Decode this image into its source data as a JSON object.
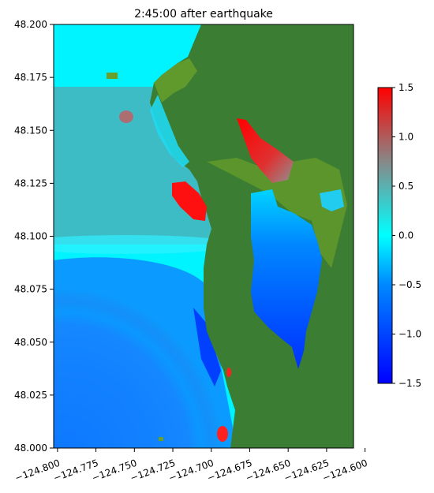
{
  "chart_data": {
    "type": "heatmap",
    "title": "2:45:00 after earthquake",
    "xlabel": "",
    "ylabel": "",
    "xlim": [
      -124.8025,
      -124.6075
    ],
    "ylim": [
      48.0,
      48.2
    ],
    "x_ticks": [
      -124.8,
      -124.775,
      -124.75,
      -124.725,
      -124.7,
      -124.675,
      -124.65,
      -124.625,
      -124.6
    ],
    "x_tick_labels": [
      "−124.800",
      "−124.775",
      "−124.750",
      "−124.725",
      "−124.700",
      "−124.675",
      "−124.650",
      "−124.625",
      "−124.600"
    ],
    "y_ticks": [
      48.0,
      48.025,
      48.05,
      48.075,
      48.1,
      48.125,
      48.15,
      48.175,
      48.2
    ],
    "y_tick_labels": [
      "48.000",
      "48.025",
      "48.050",
      "48.075",
      "48.100",
      "48.125",
      "48.150",
      "48.175",
      "48.200"
    ],
    "x_tick_rotation_deg": 20,
    "colorbar": {
      "range": [
        -1.5,
        1.5
      ],
      "ticks": [
        -1.5,
        -1.0,
        -0.5,
        0.0,
        0.5,
        1.0,
        1.5
      ],
      "tick_labels": [
        "−1.5",
        "−1.0",
        "−0.5",
        "0.0",
        "0.5",
        "1.0",
        "1.5"
      ],
      "colormap_stops": [
        {
          "value": -1.5,
          "color": "#0000ff"
        },
        {
          "value": -0.5,
          "color": "#0088ff"
        },
        {
          "value": 0.0,
          "color": "#00ffff"
        },
        {
          "value": 0.75,
          "color": "#888888"
        },
        {
          "value": 1.5,
          "color": "#ff0000"
        }
      ]
    },
    "land_color": "#3a7d33",
    "shallow_land_color": "#6aa02a",
    "grid": false
  }
}
